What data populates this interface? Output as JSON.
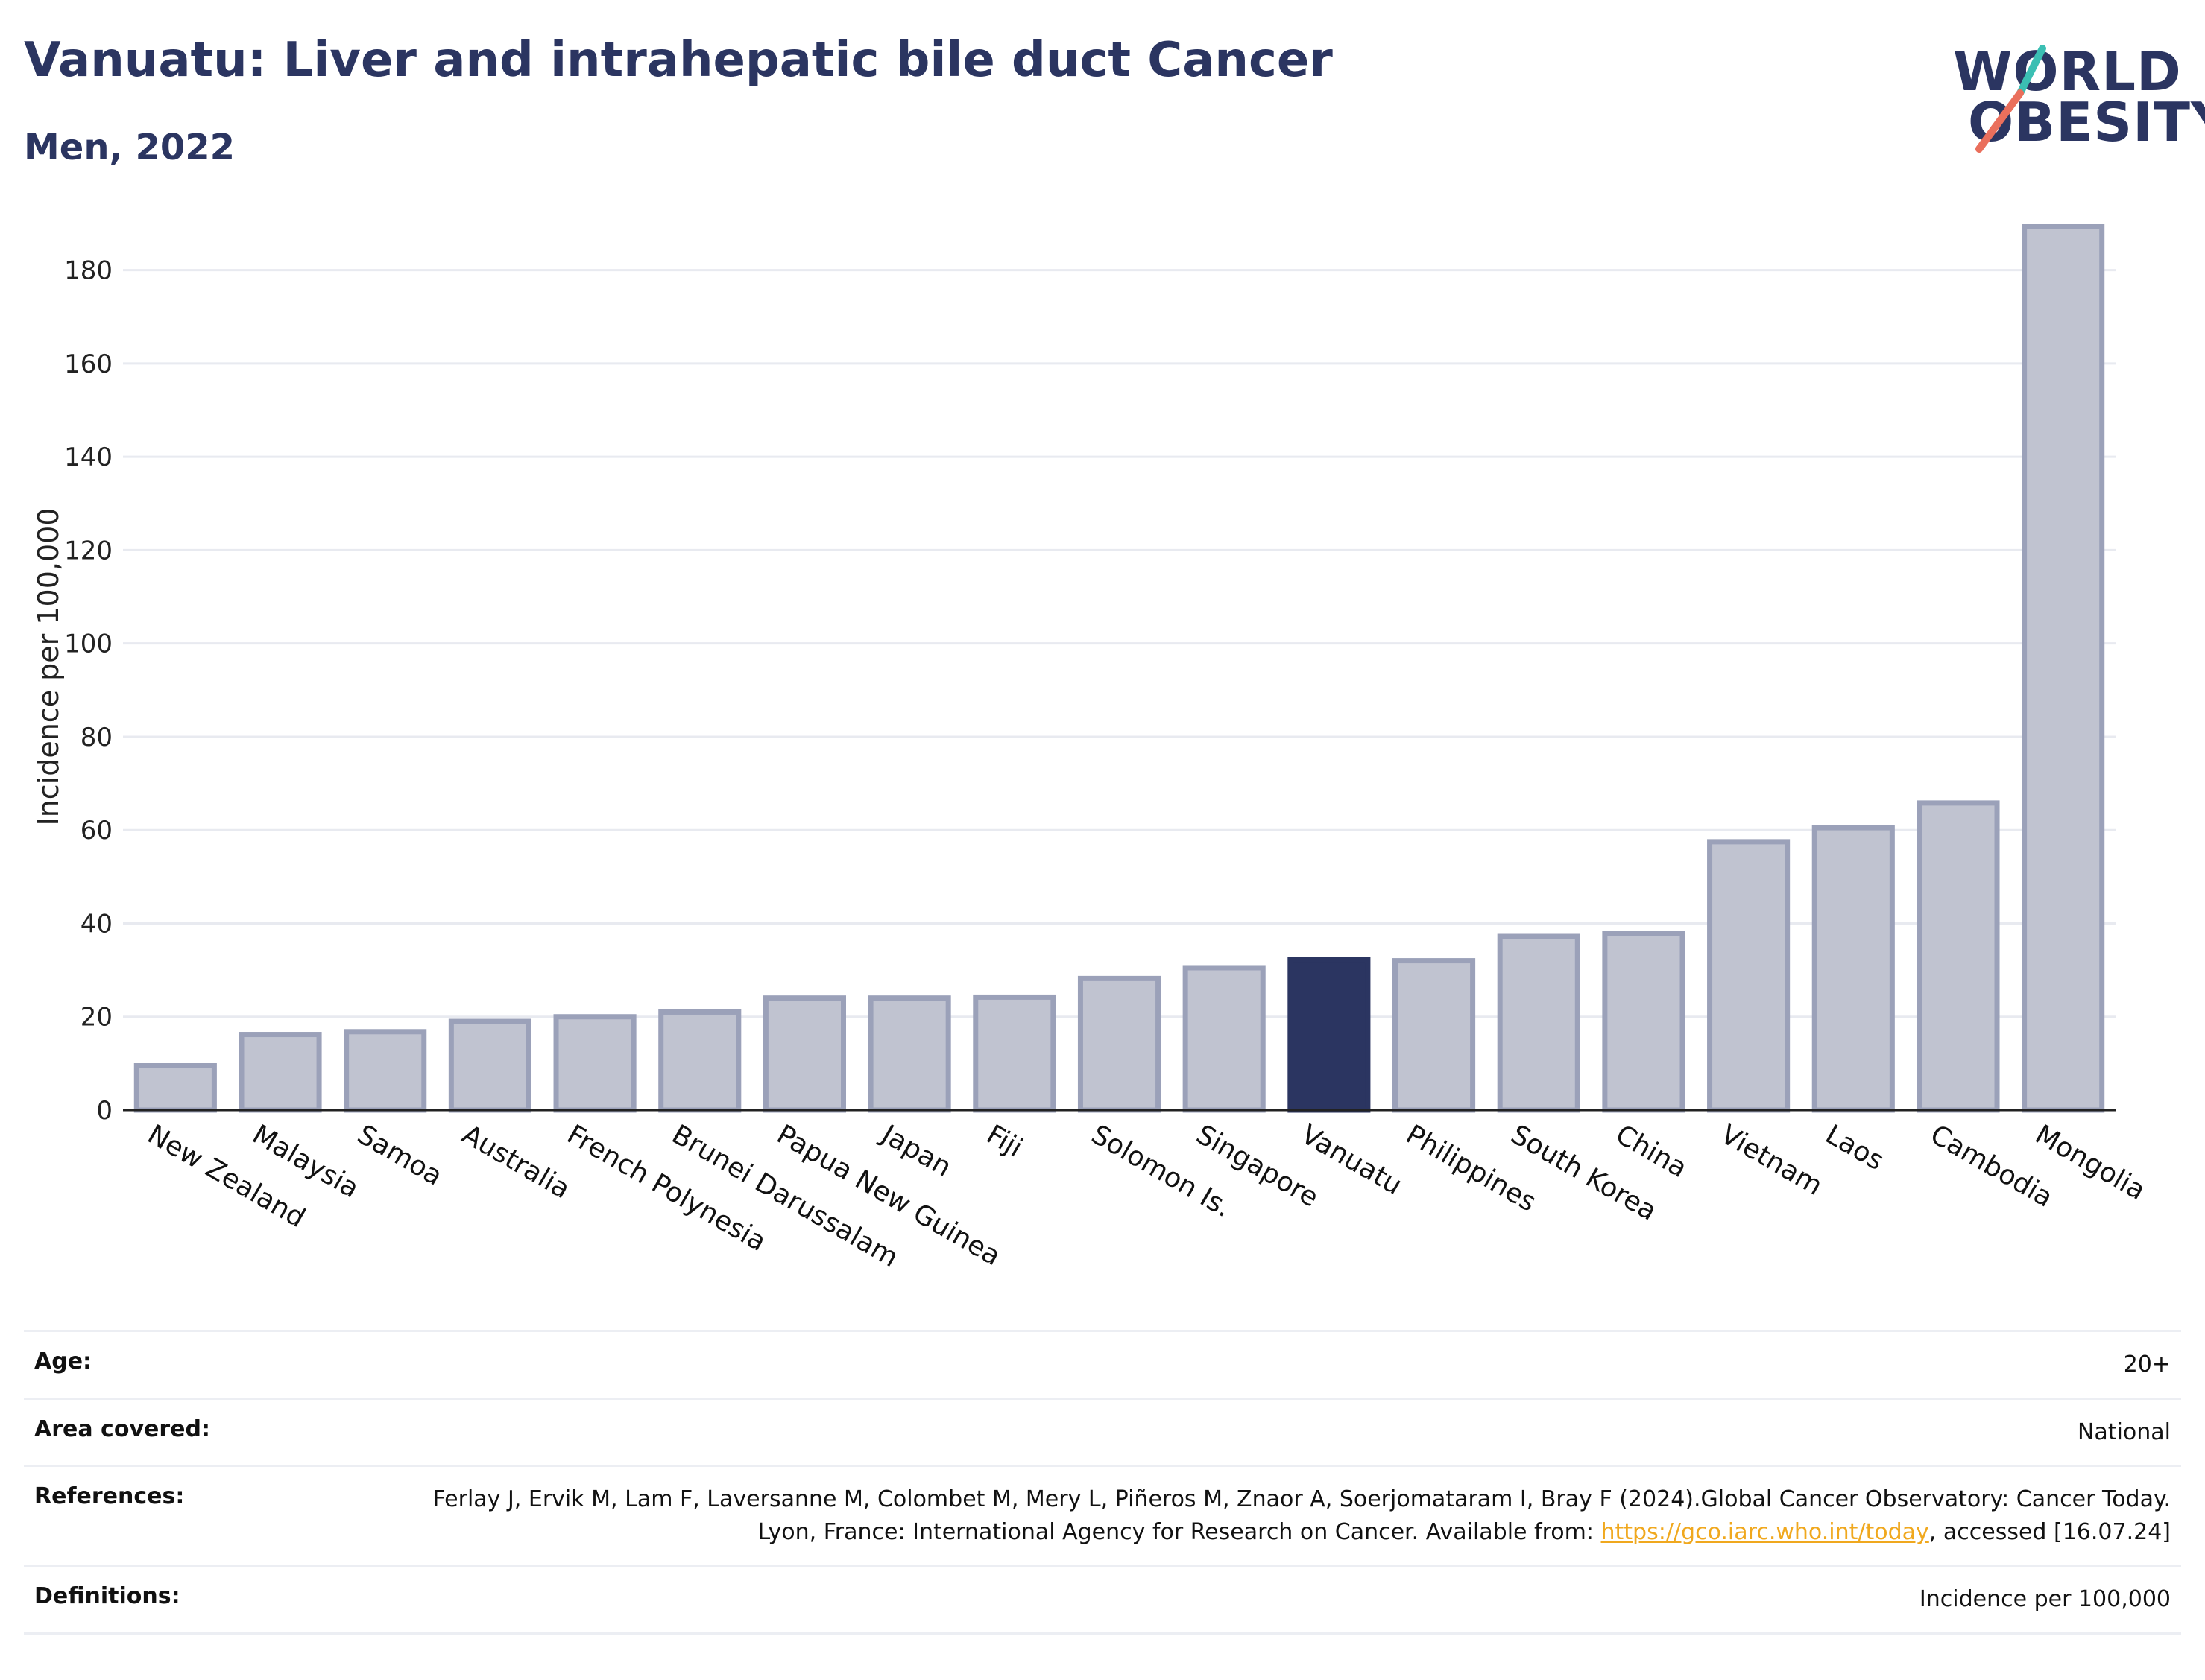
{
  "header": {
    "title": "Vanuatu: Liver and intrahepatic bile duct Cancer",
    "subtitle": "Men, 2022"
  },
  "logo": {
    "line1": "WORLD",
    "line2": "OBESITY",
    "accent_teal": "#3bbfb3",
    "accent_coral": "#ea6f5c"
  },
  "colors": {
    "bar_default": "#c0c3d0",
    "bar_default_border": "#9ba1b9",
    "bar_highlight": "#2b3561",
    "grid": "#e8eaf0",
    "title": "#2b3561"
  },
  "chart_data": {
    "type": "bar",
    "categories": [
      "New Zealand",
      "Malaysia",
      "Samoa",
      "Australia",
      "French Polynesia",
      "Brunei Darussalam",
      "Papua New Guinea",
      "Japan",
      "Fiji",
      "Solomon Is.",
      "Singapore",
      "Vanuatu",
      "Philippines",
      "South Korea",
      "China",
      "Vietnam",
      "Laos",
      "Cambodia",
      "Mongolia"
    ],
    "values": [
      9.5,
      16.2,
      16.8,
      19.0,
      20.0,
      21.0,
      24.0,
      24.0,
      24.2,
      28.2,
      30.5,
      32.2,
      32.0,
      37.2,
      37.8,
      57.5,
      60.5,
      65.8,
      189.3
    ],
    "highlight": "Vanuatu",
    "ylabel": "Incidence per 100,000",
    "xlabel": "",
    "ylim": [
      0,
      190
    ],
    "yticks": [
      0,
      20,
      40,
      60,
      80,
      100,
      120,
      140,
      160,
      180
    ],
    "grid": true
  },
  "info": {
    "rows": [
      {
        "key": "Age:",
        "value": "20+"
      },
      {
        "key": "Area covered:",
        "value": "National"
      }
    ],
    "references": {
      "key": "References:",
      "text_before": "Ferlay J, Ervik M, Lam F, Laversanne M, Colombet M, Mery L, Piñeros M, Znaor A, Soerjomataram I, Bray F (2024).Global Cancer Observatory: Cancer Today. Lyon, France: International Agency for Research on Cancer. Available from: ",
      "link": "https://gco.iarc.who.int/today",
      "text_after": ", accessed [16.07.24]"
    },
    "definitions": {
      "key": "Definitions:",
      "value": "Incidence per 100,000"
    }
  }
}
